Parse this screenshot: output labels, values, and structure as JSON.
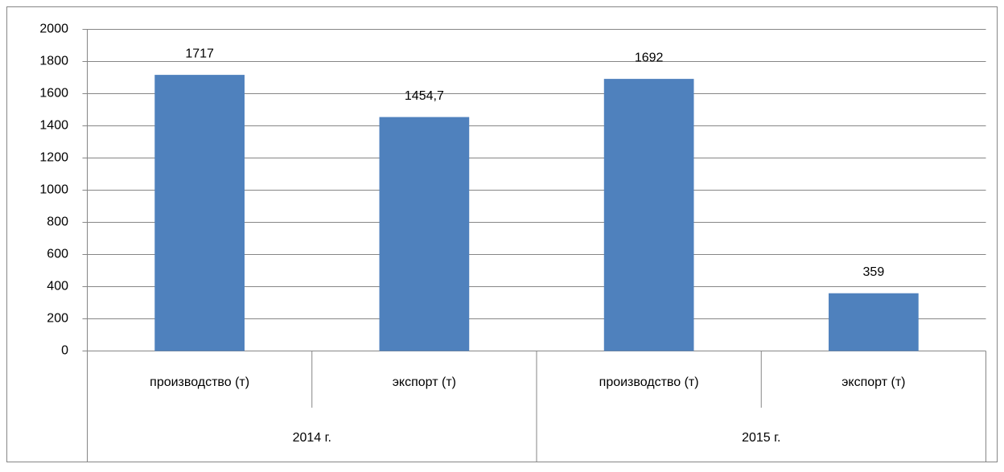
{
  "chart_data": {
    "type": "bar",
    "categories": [
      "производство (т)",
      "экспорт (т)",
      "производство (т)",
      "экспорт (т)"
    ],
    "groups": [
      "2014 г.",
      "2015 г."
    ],
    "values": [
      1717,
      1454.7,
      1692,
      359
    ],
    "value_labels": [
      "1717",
      "1454,7",
      "1692",
      "359"
    ],
    "color": "#4f81bd",
    "ylim": [
      0,
      2000
    ],
    "yticks": [
      0,
      200,
      400,
      600,
      800,
      1000,
      1200,
      1400,
      1600,
      1800,
      2000
    ],
    "grid": true
  }
}
